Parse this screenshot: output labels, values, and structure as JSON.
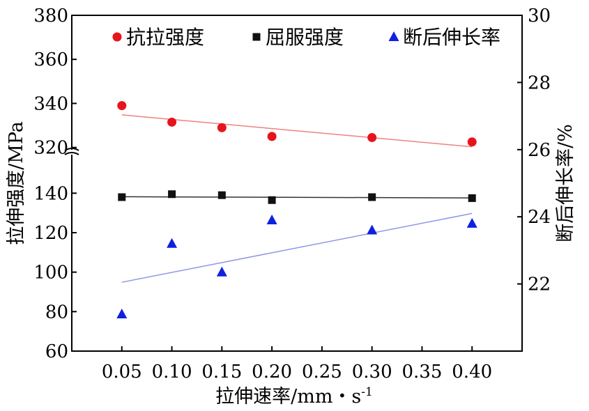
{
  "chart_data": {
    "type": "scatter",
    "xlabel": "拉伸速率/mm・s",
    "xlabel_sup": "-1",
    "ylabel_left": "拉伸强度/MPa",
    "ylabel_right": "断后伸长率/%",
    "x_ticks": [
      "0.05",
      "0.10",
      "0.15",
      "0.20",
      "0.25",
      "0.30",
      "0.35",
      "0.40"
    ],
    "x_range": [
      0.0,
      0.45
    ],
    "y_left_upper_ticks": [
      "320",
      "340",
      "360",
      "380"
    ],
    "y_left_upper_range": [
      318,
      380
    ],
    "y_left_lower_ticks": [
      "60",
      "80",
      "100",
      "120",
      "140"
    ],
    "y_left_lower_range": [
      60,
      150
    ],
    "y_axis_break": true,
    "y_right_ticks": [
      "22",
      "24",
      "26",
      "28",
      "30"
    ],
    "y_right_range": [
      20.0,
      30.0
    ],
    "legend_position": "top",
    "grid": false,
    "series": [
      {
        "name": "抗拉强度",
        "axis": "left",
        "marker": "circle",
        "color": "#e8141b",
        "x": [
          0.05,
          0.1,
          0.15,
          0.2,
          0.3,
          0.4
        ],
        "y": [
          339,
          331.5,
          329,
          325,
          324.5,
          322.5
        ],
        "trend": [
          334.8,
          320.3
        ],
        "trend_color": "#f08080"
      },
      {
        "name": "屈服强度",
        "axis": "left",
        "marker": "square",
        "color": "#111111",
        "x": [
          0.05,
          0.1,
          0.15,
          0.2,
          0.3,
          0.4
        ],
        "y": [
          138,
          139.5,
          139,
          136.5,
          138,
          137.5
        ],
        "trend": [
          138.2,
          137.6
        ],
        "trend_color": "#333333"
      },
      {
        "name": "断后伸长率",
        "axis": "right",
        "marker": "triangle",
        "color": "#1020e0",
        "x": [
          0.05,
          0.1,
          0.15,
          0.2,
          0.3,
          0.4
        ],
        "y": [
          21.1,
          23.2,
          22.35,
          23.9,
          23.6,
          23.8
        ],
        "trend": [
          22.05,
          24.1
        ],
        "trend_color": "#8f95e8"
      }
    ]
  }
}
